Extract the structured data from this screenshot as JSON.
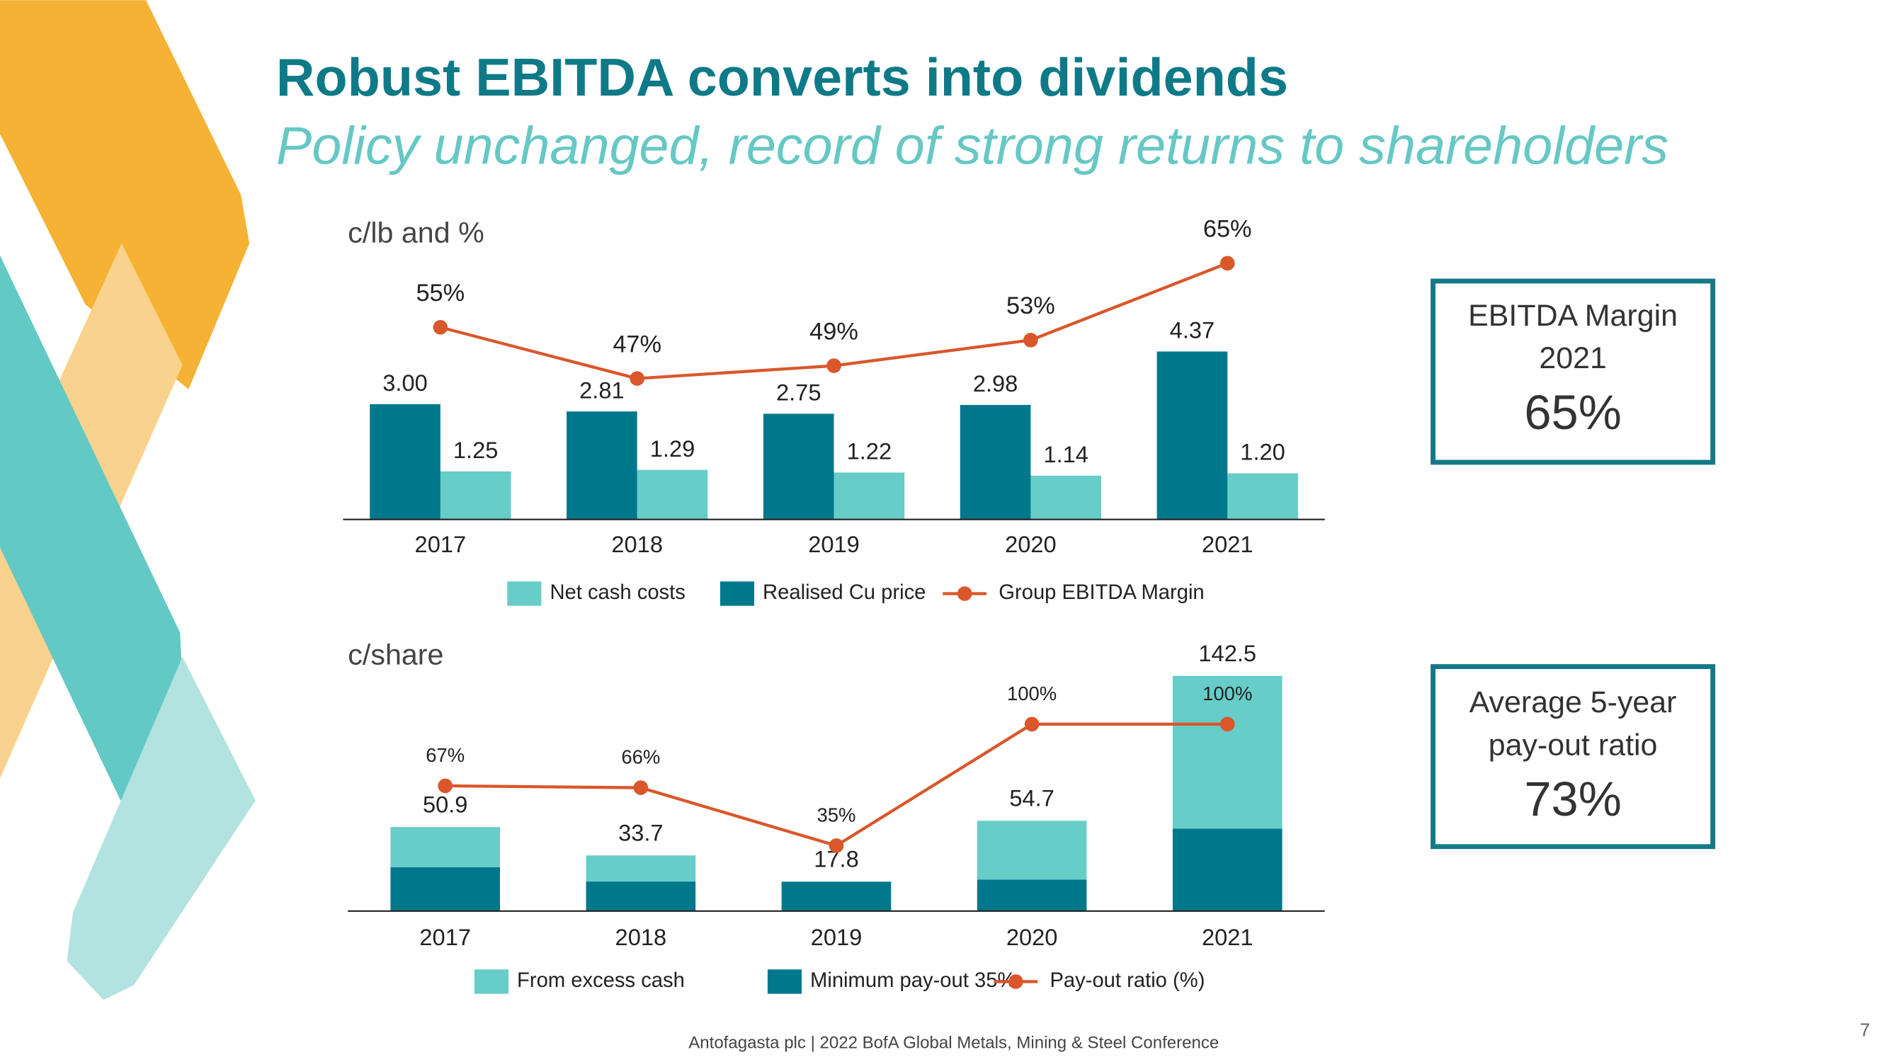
{
  "title": "Robust EBITDA converts into dividends",
  "subtitle": "Policy unchanged, record of strong returns to shareholders",
  "chart_data": [
    {
      "type": "bar",
      "title": "c/lb and %",
      "categories": [
        "2017",
        "2018",
        "2019",
        "2020",
        "2021"
      ],
      "series": [
        {
          "name": "Net cash costs",
          "type": "bar",
          "color": "#66cdc8",
          "values": [
            1.25,
            1.29,
            1.22,
            1.14,
            1.2
          ],
          "value_labels": [
            "1.25",
            "1.29",
            "1.22",
            "1.14",
            "1.20"
          ]
        },
        {
          "name": "Realised Cu price",
          "type": "bar",
          "color": "#00788c",
          "values": [
            3.0,
            2.81,
            2.75,
            2.98,
            4.37
          ],
          "value_labels": [
            "3.00",
            "2.81",
            "2.75",
            "2.98",
            "4.37"
          ]
        },
        {
          "name": "Group EBITDA Margin",
          "type": "line",
          "axis": "y2",
          "color": "#d9572b",
          "values": [
            55,
            47,
            49,
            53,
            65
          ],
          "value_labels": [
            "55%",
            "47%",
            "49%",
            "53%",
            "65%"
          ]
        }
      ],
      "ylim": [
        0,
        7.5
      ],
      "y2lim": [
        25,
        70
      ]
    },
    {
      "type": "stacked_bar",
      "title": "c/share",
      "categories": [
        "2017",
        "2018",
        "2019",
        "2020",
        "2021"
      ],
      "series": [
        {
          "name": "Minimum pay-out 35%",
          "type": "bar",
          "color": "#00788c",
          "values": [
            26.6,
            17.9,
            17.8,
            19.1,
            49.9
          ]
        },
        {
          "name": "From excess cash",
          "type": "bar",
          "color": "#66cdc8",
          "values": [
            24.3,
            15.8,
            0,
            35.6,
            92.6
          ]
        },
        {
          "name": "Pay-out ratio (%)",
          "type": "line",
          "axis": "y2",
          "color": "#d9572b",
          "values": [
            67,
            66,
            35,
            100,
            100
          ],
          "value_labels": [
            "67%",
            "66%",
            "35%",
            "100%",
            "100%"
          ]
        }
      ],
      "totals": [
        50.9,
        33.7,
        17.8,
        54.7,
        142.5
      ],
      "ylim": [
        0,
        154
      ],
      "y2lim": [
        0,
        136
      ]
    }
  ],
  "kpis": [
    {
      "lines": [
        "EBITDA Margin",
        "2021"
      ],
      "value": "65%"
    },
    {
      "lines": [
        "Average 5-year",
        "pay-out ratio"
      ],
      "value": "73%"
    }
  ],
  "footer": "Antofagasta plc | 2022 BofA Global Metals, Mining & Steel Conference",
  "page_number": "7"
}
